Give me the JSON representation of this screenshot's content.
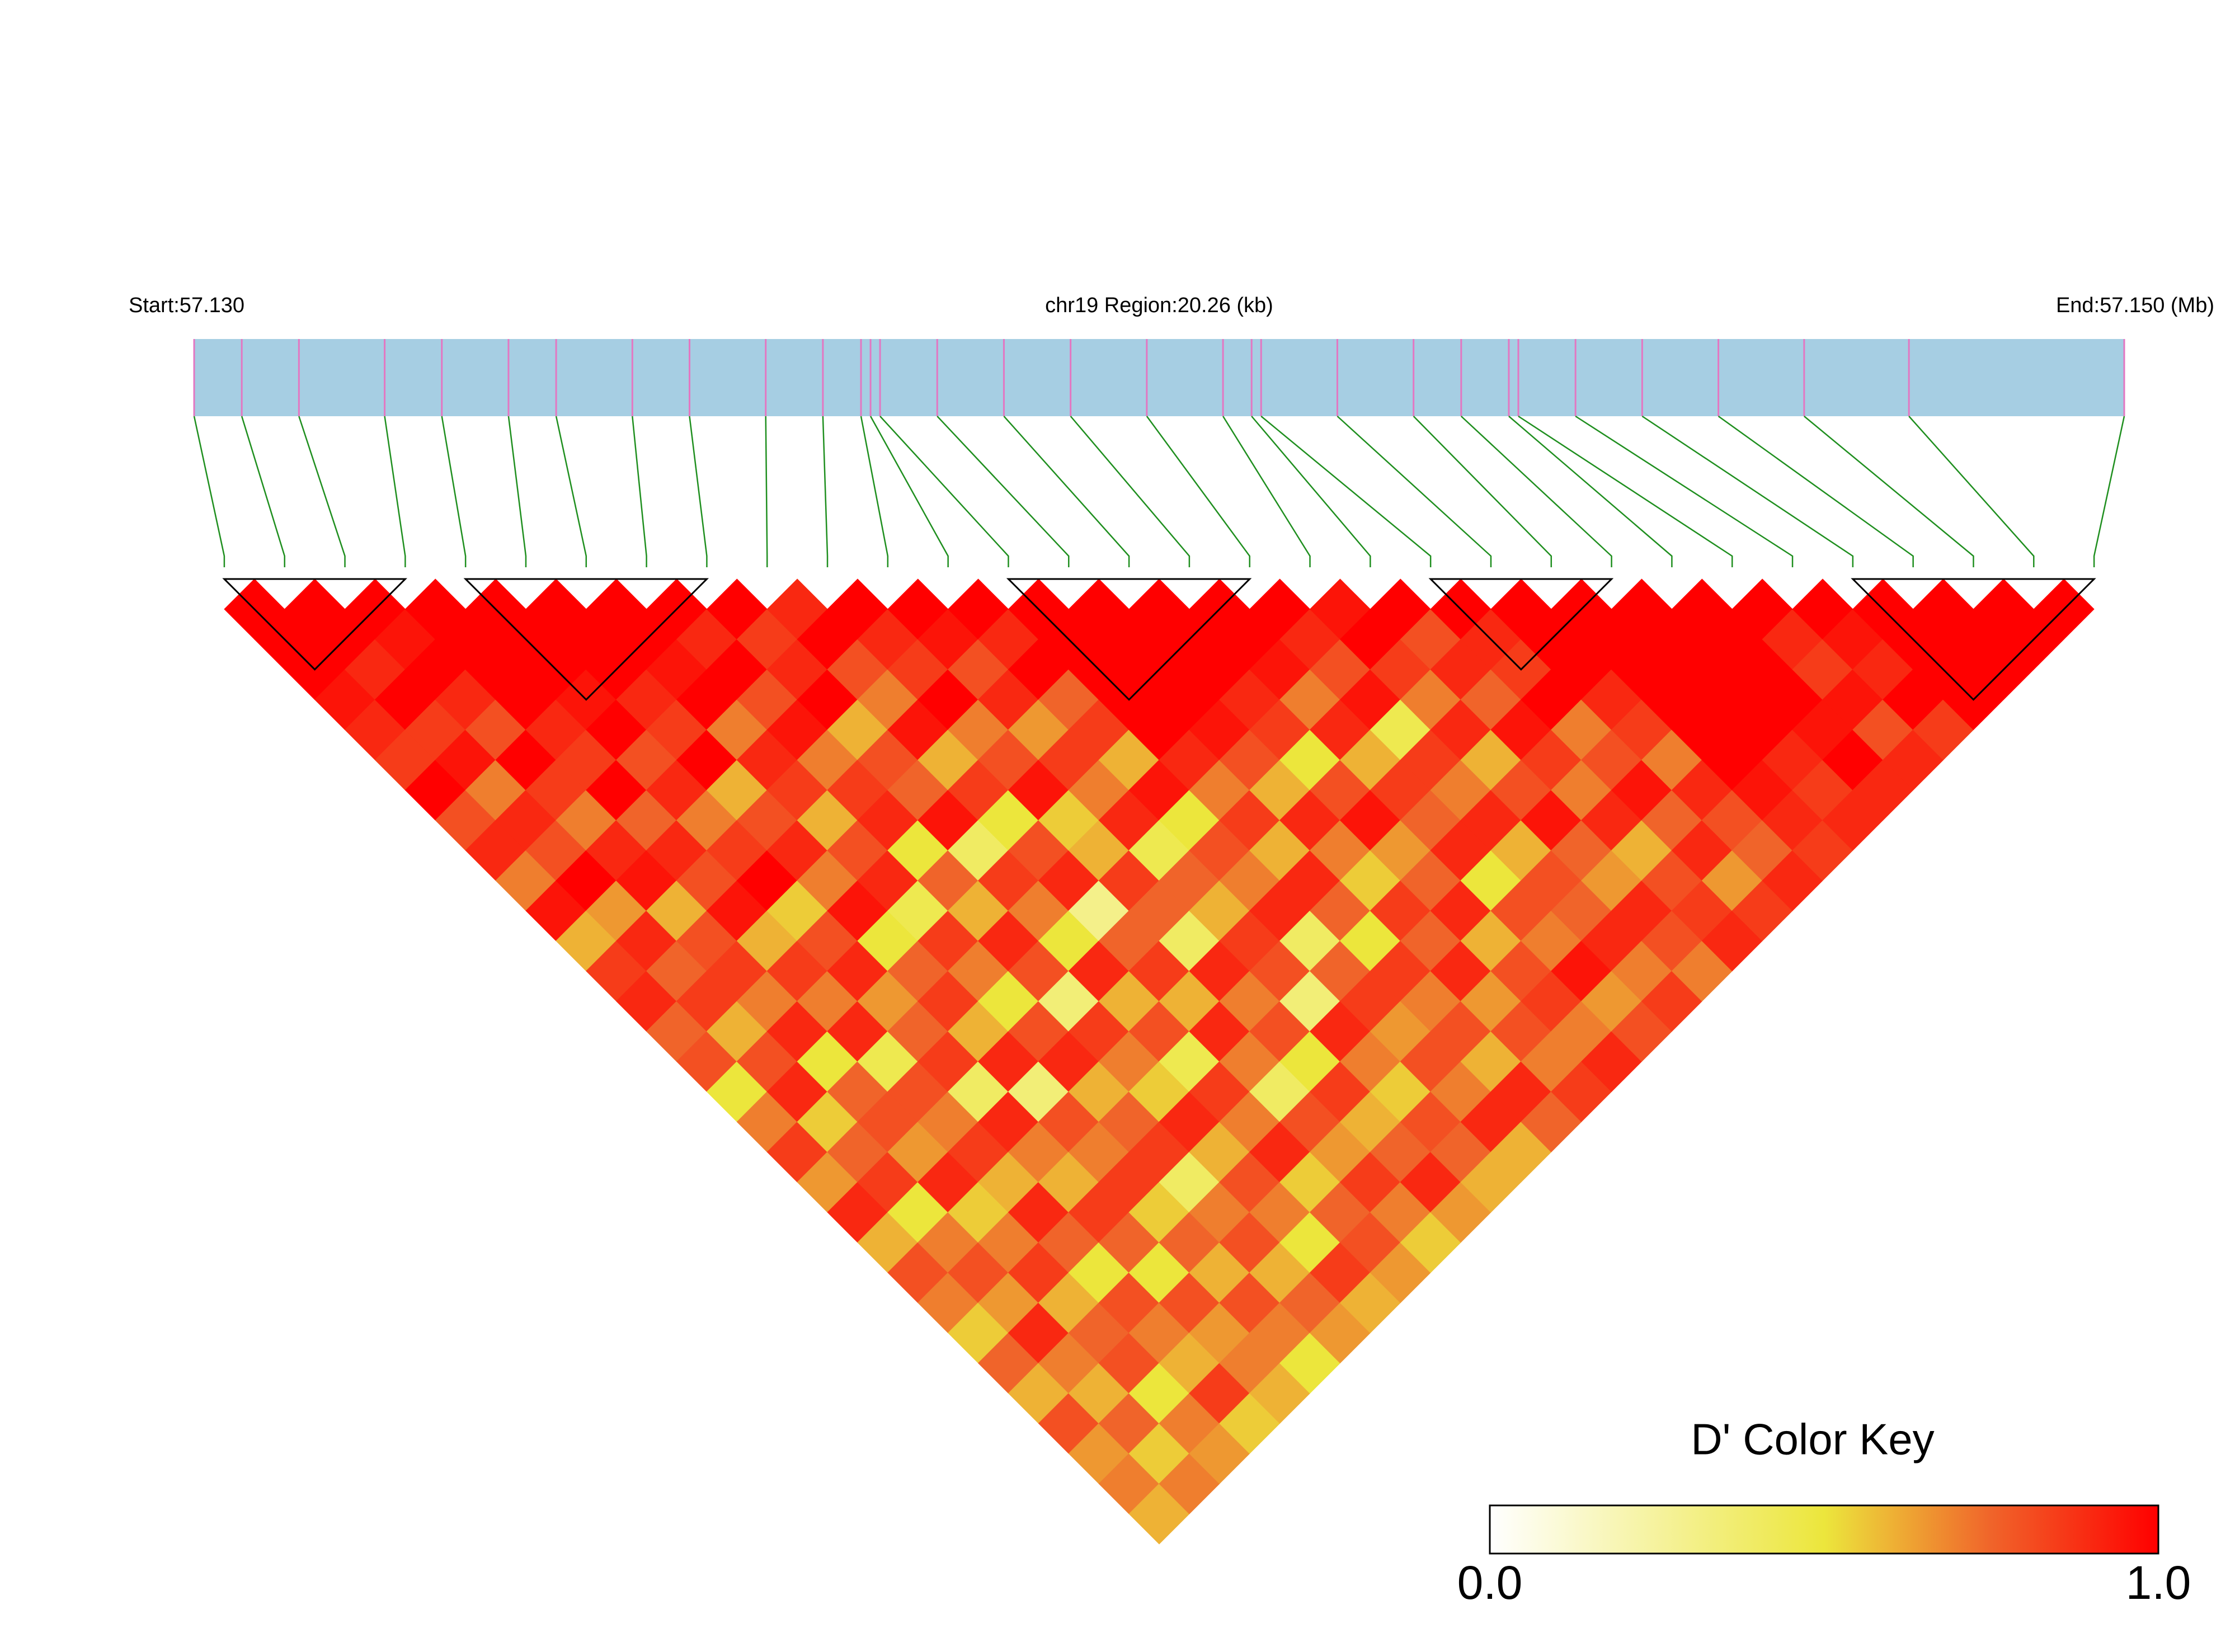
{
  "chart_data": {
    "type": "ld_heatmap",
    "start_label": "Start:57.130",
    "region_label": "chr19 Region:20.26 (kb)",
    "end_label": "End:57.150 (Mb)",
    "color_key_title": "D' Color Key",
    "xlim": [
      57.13,
      57.15026
    ],
    "positions": [
      57.13,
      57.1305,
      57.1311,
      57.132,
      57.1326,
      57.1333,
      57.1338,
      57.1346,
      57.1352,
      57.136,
      57.1366,
      57.137,
      57.1371,
      57.1372,
      57.1378,
      57.1385,
      57.1392,
      57.14,
      57.1408,
      57.1411,
      57.1412,
      57.142,
      57.1428,
      57.1433,
      57.1438,
      57.1439,
      57.1445,
      57.1452,
      57.146,
      57.1469,
      57.148,
      57.15026
    ],
    "ld": [
      [
        1,
        1,
        1,
        0.95,
        0.9,
        0.85,
        1,
        0.8,
        0.9,
        0.7,
        0.95,
        0.6,
        0.85,
        0.9,
        0.75,
        0.8,
        0.5,
        0.7,
        0.85,
        0.65,
        0.9,
        0.6,
        0.8,
        0.7,
        0.55,
        0.75,
        0.6,
        0.8,
        0.65,
        0.7,
        0.6
      ],
      [
        1,
        1,
        0.9,
        1,
        0.85,
        0.95,
        0.7,
        0.9,
        0.8,
        1,
        0.65,
        0.9,
        0.75,
        0.85,
        0.6,
        0.8,
        0.9,
        0.55,
        0.75,
        0.85,
        0.5,
        0.7,
        0.8,
        0.65,
        0.9,
        0.7,
        0.6,
        0.75,
        0.55,
        0.7
      ],
      [
        1,
        0.95,
        1,
        0.9,
        0.8,
        1,
        0.85,
        0.7,
        0.9,
        0.95,
        0.6,
        0.8,
        0.85,
        0.7,
        0.9,
        0.5,
        0.75,
        0.8,
        0.65,
        0.9,
        0.55,
        0.7,
        0.85,
        0.6,
        0.75,
        0.8,
        0.5,
        0.7,
        0.65
      ],
      [
        1,
        1,
        1,
        1,
        0.9,
        0.85,
        1,
        0.75,
        0.9,
        0.8,
        0.95,
        0.6,
        0.85,
        0.7,
        0.9,
        0.45,
        0.8,
        0.7,
        0.85,
        0.6,
        0.9,
        0.75,
        0.5,
        0.8,
        0.7,
        0.6,
        0.85,
        0.55
      ],
      [
        1,
        1,
        1,
        0.95,
        1,
        0.8,
        0.9,
        0.7,
        0.85,
        1,
        0.55,
        0.8,
        0.9,
        0.65,
        0.75,
        0.85,
        0.4,
        0.9,
        0.7,
        0.6,
        0.85,
        0.75,
        0.5,
        0.8,
        0.65,
        0.7,
        0.6
      ],
      [
        1,
        1,
        1,
        0.9,
        0.85,
        1,
        0.6,
        0.8,
        0.9,
        0.7,
        0.95,
        0.5,
        0.75,
        0.85,
        0.6,
        0.9,
        0.35,
        0.8,
        0.7,
        0.85,
        0.55,
        0.75,
        0.6,
        0.8,
        0.7,
        0.5
      ],
      [
        1,
        1,
        0.95,
        1,
        0.7,
        0.9,
        0.85,
        0.6,
        0.8,
        0.9,
        0.45,
        0.85,
        0.7,
        0.5,
        0.8,
        0.9,
        0.6,
        0.75,
        0.85,
        0.4,
        0.7,
        0.8,
        0.6,
        0.75,
        0.65
      ],
      [
        1,
        0.9,
        1,
        0.8,
        0.95,
        0.7,
        0.85,
        0.9,
        0.5,
        0.75,
        0.6,
        0.9,
        0.8,
        0.35,
        0.85,
        0.7,
        0.55,
        0.9,
        0.6,
        0.8,
        0.7,
        0.5,
        0.85,
        0.6
      ],
      [
        1,
        0.85,
        0.9,
        1,
        0.6,
        0.8,
        0.75,
        0.95,
        0.4,
        0.85,
        0.7,
        0.5,
        0.9,
        0.6,
        0.8,
        0.45,
        0.85,
        0.7,
        0.9,
        0.55,
        0.75,
        0.8,
        0.65
      ],
      [
        0.9,
        1,
        0.8,
        0.7,
        0.95,
        0.6,
        0.85,
        0.5,
        0.8,
        0.9,
        0.3,
        0.75,
        0.85,
        0.6,
        0.9,
        0.7,
        0.4,
        0.8,
        0.65,
        0.85,
        0.7,
        0.55
      ],
      [
        1,
        0.9,
        0.85,
        1,
        0.7,
        0.8,
        0.95,
        0.55,
        0.6,
        0.85,
        0.75,
        0.4,
        0.9,
        0.7,
        0.8,
        0.5,
        0.85,
        0.6,
        0.75,
        0.9,
        0.65
      ],
      [
        1,
        0.95,
        0.8,
        0.9,
        0.65,
        0.85,
        0.7,
        0.9,
        0.45,
        0.75,
        0.6,
        0.85,
        0.8,
        0.35,
        0.9,
        0.7,
        0.55,
        0.8,
        0.75,
        0.6
      ],
      [
        1,
        0.9,
        1,
        0.75,
        0.85,
        0.6,
        0.95,
        0.5,
        0.8,
        0.7,
        0.9,
        0.4,
        0.75,
        0.85,
        0.65,
        0.8,
        0.7,
        0.9,
        0.6
      ],
      [
        1,
        1,
        1,
        1,
        1,
        0.9,
        0.7,
        0.85,
        0.6,
        0.9,
        0.75,
        0.5,
        0.85,
        0.7,
        0.8,
        0.6,
        0.9,
        0.75
      ],
      [
        1,
        1,
        1,
        1,
        0.95,
        0.8,
        0.6,
        0.9,
        0.7,
        0.55,
        0.85,
        0.75,
        0.9,
        0.65,
        0.8,
        0.7,
        0.85
      ],
      [
        1,
        1,
        1,
        0.9,
        0.85,
        0.5,
        0.8,
        0.95,
        0.65,
        0.75,
        0.9,
        0.6,
        0.8,
        0.85,
        0.7,
        0.9
      ],
      [
        1,
        1,
        0.95,
        0.7,
        0.9,
        0.6,
        0.85,
        0.75,
        0.9,
        0.5,
        0.8,
        0.7,
        0.95,
        0.65,
        0.8
      ],
      [
        1,
        0.9,
        0.8,
        0.95,
        0.45,
        0.85,
        0.7,
        0.9,
        0.6,
        0.8,
        0.75,
        0.9,
        0.7,
        0.85
      ],
      [
        0.95,
        1,
        0.85,
        0.7,
        0.9,
        0.6,
        0.8,
        0.95,
        0.75,
        0.65,
        0.9,
        0.8,
        0.7
      ],
      [
        1,
        0.8,
        0.9,
        0.75,
        0.95,
        0.85,
        0.7,
        0.9,
        0.6,
        0.8,
        0.85,
        0.9
      ],
      [
        1,
        0.9,
        0.85,
        1,
        0.7,
        0.8,
        0.95,
        0.75,
        0.9,
        0.65,
        0.85
      ],
      [
        1,
        1,
        1,
        0.9,
        0.85,
        0.7,
        0.9,
        0.8,
        0.75,
        0.9
      ],
      [
        1,
        1,
        1,
        1,
        1,
        1,
        0.95,
        0.9,
        0.85
      ],
      [
        1,
        1,
        1,
        1,
        1,
        0.9,
        0.85,
        0.9
      ],
      [
        1,
        1,
        1,
        1,
        0.95,
        1,
        0.9
      ],
      [
        1,
        0.9,
        0.85,
        0.95,
        0.8,
        0.9
      ],
      [
        1,
        0.95,
        0.9,
        1,
        0.85
      ],
      [
        1,
        1,
        1,
        1
      ],
      [
        1,
        1,
        1
      ],
      [
        1,
        1
      ],
      [
        1
      ]
    ],
    "blocks": [
      [
        0,
        3
      ],
      [
        4,
        8
      ],
      [
        13,
        17
      ],
      [
        20,
        23
      ],
      [
        27,
        31
      ]
    ],
    "colorscale": [
      [
        0,
        "#ffffff"
      ],
      [
        0.5,
        "#ece63c"
      ],
      [
        0.75,
        "#f0642a"
      ],
      [
        1,
        "#ff0000"
      ]
    ],
    "track_color": "#a6cee3",
    "snp_color": "#e377c2",
    "link_color": "#1f8f1f",
    "colorbar_lim": [
      0,
      1
    ],
    "colorbar_ticks": [
      {
        "value": 0,
        "label": "0.0"
      },
      {
        "value": 1,
        "label": "1.0"
      }
    ]
  }
}
